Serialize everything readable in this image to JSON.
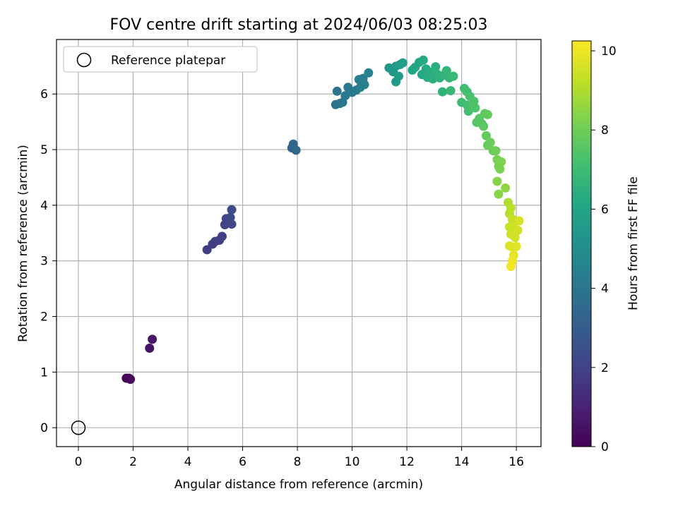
{
  "chart_data": {
    "type": "scatter",
    "title": "FOV centre drift starting at 2024/06/03 08:25:03",
    "xlabel": "Angular distance from reference (arcmin)",
    "ylabel": "Rotation from reference (arcmin)",
    "xlim": [
      -0.8,
      16.9
    ],
    "ylim": [
      -0.34,
      6.98
    ],
    "xticks": [
      0,
      2,
      4,
      6,
      8,
      10,
      12,
      14,
      16
    ],
    "yticks": [
      0,
      1,
      2,
      3,
      4,
      5,
      6
    ],
    "grid": true,
    "legend": {
      "position": "top-left",
      "label": "Reference platepar",
      "marker": "open-circle"
    },
    "reference_point": {
      "x": 0,
      "y": 0
    },
    "colormap": "viridis",
    "colorbar": {
      "label": "Hours from first FF file",
      "range": [
        0,
        10.25
      ],
      "ticks": [
        0,
        2,
        4,
        6,
        8,
        10
      ]
    },
    "series": [
      {
        "marker": "filled-circle",
        "points": [
          {
            "x": 1.75,
            "y": 0.89,
            "c": 0.1
          },
          {
            "x": 1.85,
            "y": 0.89,
            "c": 0.15
          },
          {
            "x": 1.9,
            "y": 0.87,
            "c": 0.2
          },
          {
            "x": 2.6,
            "y": 1.43,
            "c": 0.6
          },
          {
            "x": 2.7,
            "y": 1.59,
            "c": 0.65
          },
          {
            "x": 4.7,
            "y": 3.2,
            "c": 1.8
          },
          {
            "x": 4.9,
            "y": 3.3,
            "c": 1.85
          },
          {
            "x": 5.0,
            "y": 3.35,
            "c": 1.9
          },
          {
            "x": 5.15,
            "y": 3.37,
            "c": 1.95
          },
          {
            "x": 5.25,
            "y": 3.44,
            "c": 2.0
          },
          {
            "x": 5.35,
            "y": 3.65,
            "c": 2.05
          },
          {
            "x": 5.4,
            "y": 3.76,
            "c": 2.1
          },
          {
            "x": 5.55,
            "y": 3.78,
            "c": 2.15
          },
          {
            "x": 5.6,
            "y": 3.66,
            "c": 2.2
          },
          {
            "x": 5.6,
            "y": 3.92,
            "c": 2.25
          },
          {
            "x": 7.8,
            "y": 5.03,
            "c": 3.3
          },
          {
            "x": 7.85,
            "y": 5.1,
            "c": 3.35
          },
          {
            "x": 7.95,
            "y": 4.99,
            "c": 3.4
          },
          {
            "x": 9.4,
            "y": 5.81,
            "c": 3.9
          },
          {
            "x": 9.45,
            "y": 6.05,
            "c": 3.95
          },
          {
            "x": 9.55,
            "y": 5.83,
            "c": 4.0
          },
          {
            "x": 9.65,
            "y": 5.85,
            "c": 4.05
          },
          {
            "x": 9.75,
            "y": 5.97,
            "c": 4.1
          },
          {
            "x": 9.85,
            "y": 6.12,
            "c": 4.15
          },
          {
            "x": 10.0,
            "y": 6.03,
            "c": 4.2
          },
          {
            "x": 10.15,
            "y": 6.07,
            "c": 4.25
          },
          {
            "x": 10.25,
            "y": 6.26,
            "c": 4.3
          },
          {
            "x": 10.3,
            "y": 6.12,
            "c": 4.35
          },
          {
            "x": 10.4,
            "y": 6.28,
            "c": 4.4
          },
          {
            "x": 10.45,
            "y": 6.17,
            "c": 4.45
          },
          {
            "x": 10.6,
            "y": 6.38,
            "c": 4.5
          },
          {
            "x": 11.35,
            "y": 6.47,
            "c": 5.4
          },
          {
            "x": 11.5,
            "y": 6.4,
            "c": 5.45
          },
          {
            "x": 11.6,
            "y": 6.5,
            "c": 5.5
          },
          {
            "x": 11.6,
            "y": 6.22,
            "c": 5.55
          },
          {
            "x": 11.7,
            "y": 6.32,
            "c": 5.6
          },
          {
            "x": 11.75,
            "y": 6.53,
            "c": 5.65
          },
          {
            "x": 11.85,
            "y": 6.56,
            "c": 5.7
          },
          {
            "x": 12.2,
            "y": 6.43,
            "c": 6.0
          },
          {
            "x": 12.3,
            "y": 6.48,
            "c": 6.05
          },
          {
            "x": 12.45,
            "y": 6.57,
            "c": 6.1
          },
          {
            "x": 12.55,
            "y": 6.35,
            "c": 6.15
          },
          {
            "x": 12.6,
            "y": 6.61,
            "c": 6.2
          },
          {
            "x": 12.7,
            "y": 6.45,
            "c": 6.25
          },
          {
            "x": 12.75,
            "y": 6.3,
            "c": 6.3
          },
          {
            "x": 12.85,
            "y": 6.39,
            "c": 6.35
          },
          {
            "x": 12.95,
            "y": 6.27,
            "c": 6.4
          },
          {
            "x": 13.05,
            "y": 6.49,
            "c": 6.45
          },
          {
            "x": 13.1,
            "y": 6.36,
            "c": 6.5
          },
          {
            "x": 13.2,
            "y": 6.29,
            "c": 6.55
          },
          {
            "x": 13.3,
            "y": 6.04,
            "c": 6.6
          },
          {
            "x": 13.35,
            "y": 6.34,
            "c": 6.65
          },
          {
            "x": 13.45,
            "y": 6.42,
            "c": 6.7
          },
          {
            "x": 13.55,
            "y": 6.29,
            "c": 6.75
          },
          {
            "x": 13.6,
            "y": 6.06,
            "c": 6.8
          },
          {
            "x": 13.7,
            "y": 6.32,
            "c": 6.85
          },
          {
            "x": 14.0,
            "y": 5.85,
            "c": 7.0
          },
          {
            "x": 14.1,
            "y": 6.1,
            "c": 7.05
          },
          {
            "x": 14.2,
            "y": 5.8,
            "c": 7.1
          },
          {
            "x": 14.2,
            "y": 6.04,
            "c": 7.15
          },
          {
            "x": 14.25,
            "y": 5.69,
            "c": 7.2
          },
          {
            "x": 14.3,
            "y": 5.96,
            "c": 7.25
          },
          {
            "x": 14.4,
            "y": 5.8,
            "c": 7.3
          },
          {
            "x": 14.45,
            "y": 5.87,
            "c": 7.35
          },
          {
            "x": 14.5,
            "y": 5.75,
            "c": 7.4
          },
          {
            "x": 14.55,
            "y": 5.49,
            "c": 7.5
          },
          {
            "x": 14.65,
            "y": 5.56,
            "c": 7.55
          },
          {
            "x": 14.75,
            "y": 5.46,
            "c": 7.6
          },
          {
            "x": 14.8,
            "y": 5.42,
            "c": 7.65
          },
          {
            "x": 14.85,
            "y": 5.65,
            "c": 7.7
          },
          {
            "x": 14.95,
            "y": 5.63,
            "c": 7.75
          },
          {
            "x": 14.9,
            "y": 5.25,
            "c": 7.8
          },
          {
            "x": 14.95,
            "y": 5.08,
            "c": 7.85
          },
          {
            "x": 15.05,
            "y": 5.13,
            "c": 7.9
          },
          {
            "x": 15.15,
            "y": 4.98,
            "c": 7.95
          },
          {
            "x": 15.25,
            "y": 4.98,
            "c": 8.0
          },
          {
            "x": 15.3,
            "y": 4.82,
            "c": 8.1
          },
          {
            "x": 15.35,
            "y": 4.7,
            "c": 8.15
          },
          {
            "x": 15.4,
            "y": 4.65,
            "c": 8.2
          },
          {
            "x": 15.45,
            "y": 4.78,
            "c": 8.25
          },
          {
            "x": 15.3,
            "y": 4.43,
            "c": 8.35
          },
          {
            "x": 15.35,
            "y": 4.2,
            "c": 8.4
          },
          {
            "x": 15.6,
            "y": 4.31,
            "c": 8.5
          },
          {
            "x": 15.7,
            "y": 4.05,
            "c": 9.0
          },
          {
            "x": 15.75,
            "y": 3.85,
            "c": 9.1
          },
          {
            "x": 15.8,
            "y": 3.95,
            "c": 9.2
          },
          {
            "x": 15.85,
            "y": 3.75,
            "c": 9.3
          },
          {
            "x": 15.75,
            "y": 3.61,
            "c": 9.4
          },
          {
            "x": 15.9,
            "y": 3.6,
            "c": 9.45
          },
          {
            "x": 15.8,
            "y": 3.48,
            "c": 9.5
          },
          {
            "x": 15.95,
            "y": 3.42,
            "c": 9.55
          },
          {
            "x": 16.05,
            "y": 3.55,
            "c": 9.6
          },
          {
            "x": 16.1,
            "y": 3.72,
            "c": 9.65
          },
          {
            "x": 15.75,
            "y": 3.27,
            "c": 9.7
          },
          {
            "x": 15.85,
            "y": 3.25,
            "c": 9.75
          },
          {
            "x": 16.0,
            "y": 3.26,
            "c": 9.8
          },
          {
            "x": 15.9,
            "y": 3.1,
            "c": 9.9
          },
          {
            "x": 15.85,
            "y": 3.0,
            "c": 10.0
          },
          {
            "x": 15.8,
            "y": 2.9,
            "c": 10.1
          }
        ]
      }
    ]
  }
}
